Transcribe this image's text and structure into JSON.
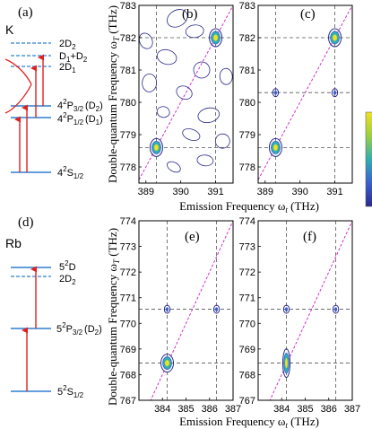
{
  "panel_labels": {
    "a": "(a)",
    "b": "(b)",
    "c": "(c)",
    "d": "(d)",
    "e": "(e)",
    "f": "(f)"
  },
  "diagram_k": {
    "element": "K",
    "levels": [
      "2D",
      "D",
      "+D",
      "2D",
      "4",
      "P",
      "(D",
      ")",
      "4",
      "P",
      "(D",
      ")",
      "4",
      "S"
    ],
    "sub_2d2": "2",
    "sub_d1": "1",
    "sub_d2": "2",
    "sub_2d1": "1",
    "p32_sup": "2",
    "p32_sub": "3/2",
    "p32_d": "2",
    "p12_sup": "2",
    "p12_sub": "1/2",
    "p12_d": "1",
    "s12_sup": "2",
    "s12_sub": "1/2"
  },
  "diagram_rb": {
    "element": "Rb",
    "d52_main": "5",
    "d52_sup": "2",
    "d52_tail": "D",
    "d2d2_main": "2D",
    "d2d2_sub": "2",
    "p32_main": "5",
    "p32_sup": "2",
    "p32_mid": "P",
    "p32_sub": "3/2",
    "p32_d": "(D",
    "p32_dsub": "2",
    "p32_close": ")",
    "s12_main": "5",
    "s12_sup": "2",
    "s12_mid": "S",
    "s12_sub": "1/2"
  },
  "axis_text": {
    "ylabel_top": "Double-quantum Frequency ω",
    "ylabel_top_sub": "T",
    "ylabel_top_unit": " (THz)",
    "xlabel_top": "Emission Frequency ω",
    "xlabel_top_sub": "t",
    "xlabel_top_unit": " (THz)",
    "ylabel_bot": "Double-quantum Frequency ω",
    "ylabel_bot_sub": "T",
    "ylabel_bot_unit": " (THz)",
    "xlabel_bot": "Emission Frequency ω",
    "xlabel_bot_sub": "t",
    "xlabel_bot_unit": " (THz)"
  },
  "colors": {
    "level_line": "#2f7fd0",
    "arrow": "#e02020",
    "diagonal": "#d030d0",
    "contour_outer": "#2a2a8c",
    "peak_center": "#f0e020",
    "peak_mid": "#30b0b0"
  },
  "chart_data": [
    {
      "type": "heatmap",
      "panel": "(b)",
      "xlim": [
        388.8,
        391.5
      ],
      "ylim": [
        777.5,
        783
      ],
      "xticks": [
        "389",
        "390",
        "391"
      ],
      "yticks": [
        "778",
        "779",
        "780",
        "781",
        "782",
        "783"
      ],
      "guide_x": [
        389.3,
        391.0
      ],
      "guide_y": [
        778.6,
        782.0
      ],
      "peaks": [
        {
          "x": 389.3,
          "y": 778.6
        },
        {
          "x": 391.0,
          "y": 782.0
        }
      ],
      "diagonal": "y = 2x"
    },
    {
      "type": "heatmap",
      "panel": "(c)",
      "xlim": [
        388.8,
        391.5
      ],
      "ylim": [
        777.5,
        783
      ],
      "xticks": [
        "389",
        "390",
        "391"
      ],
      "yticks": [
        "778",
        "779",
        "780",
        "781",
        "782",
        "783"
      ],
      "guide_x": [
        389.3,
        391.0
      ],
      "guide_y": [
        778.6,
        780.3,
        782.0
      ],
      "peaks": [
        {
          "x": 389.3,
          "y": 778.6
        },
        {
          "x": 391.0,
          "y": 782.0
        },
        {
          "x": 389.3,
          "y": 780.3
        },
        {
          "x": 391.0,
          "y": 780.3
        }
      ],
      "diagonal": "y = 2x"
    },
    {
      "type": "heatmap",
      "panel": "(e)",
      "xlim": [
        383,
        387
      ],
      "ylim": [
        767,
        774
      ],
      "xticks": [
        "384",
        "385",
        "386",
        "387"
      ],
      "yticks": [
        "767",
        "768",
        "769",
        "770",
        "771",
        "772",
        "773",
        "774"
      ],
      "guide_x": [
        384.2,
        386.3
      ],
      "guide_y": [
        768.45,
        770.55
      ],
      "peaks": [
        {
          "x": 384.2,
          "y": 768.45
        },
        {
          "x": 384.2,
          "y": 770.55
        },
        {
          "x": 386.3,
          "y": 770.55
        }
      ],
      "diagonal": "y = 2x"
    },
    {
      "type": "heatmap",
      "panel": "(f)",
      "xlim": [
        383,
        387
      ],
      "ylim": [
        767,
        774
      ],
      "xticks": [
        "384",
        "385",
        "386",
        "387"
      ],
      "yticks": [
        "767",
        "768",
        "769",
        "770",
        "771",
        "772",
        "773",
        "774"
      ],
      "guide_x": [
        384.2,
        386.3
      ],
      "guide_y": [
        768.45,
        770.55
      ],
      "peaks": [
        {
          "x": 384.2,
          "y": 768.45
        },
        {
          "x": 384.2,
          "y": 770.55
        },
        {
          "x": 386.3,
          "y": 770.55
        }
      ],
      "diagonal": "y = 2x"
    }
  ]
}
